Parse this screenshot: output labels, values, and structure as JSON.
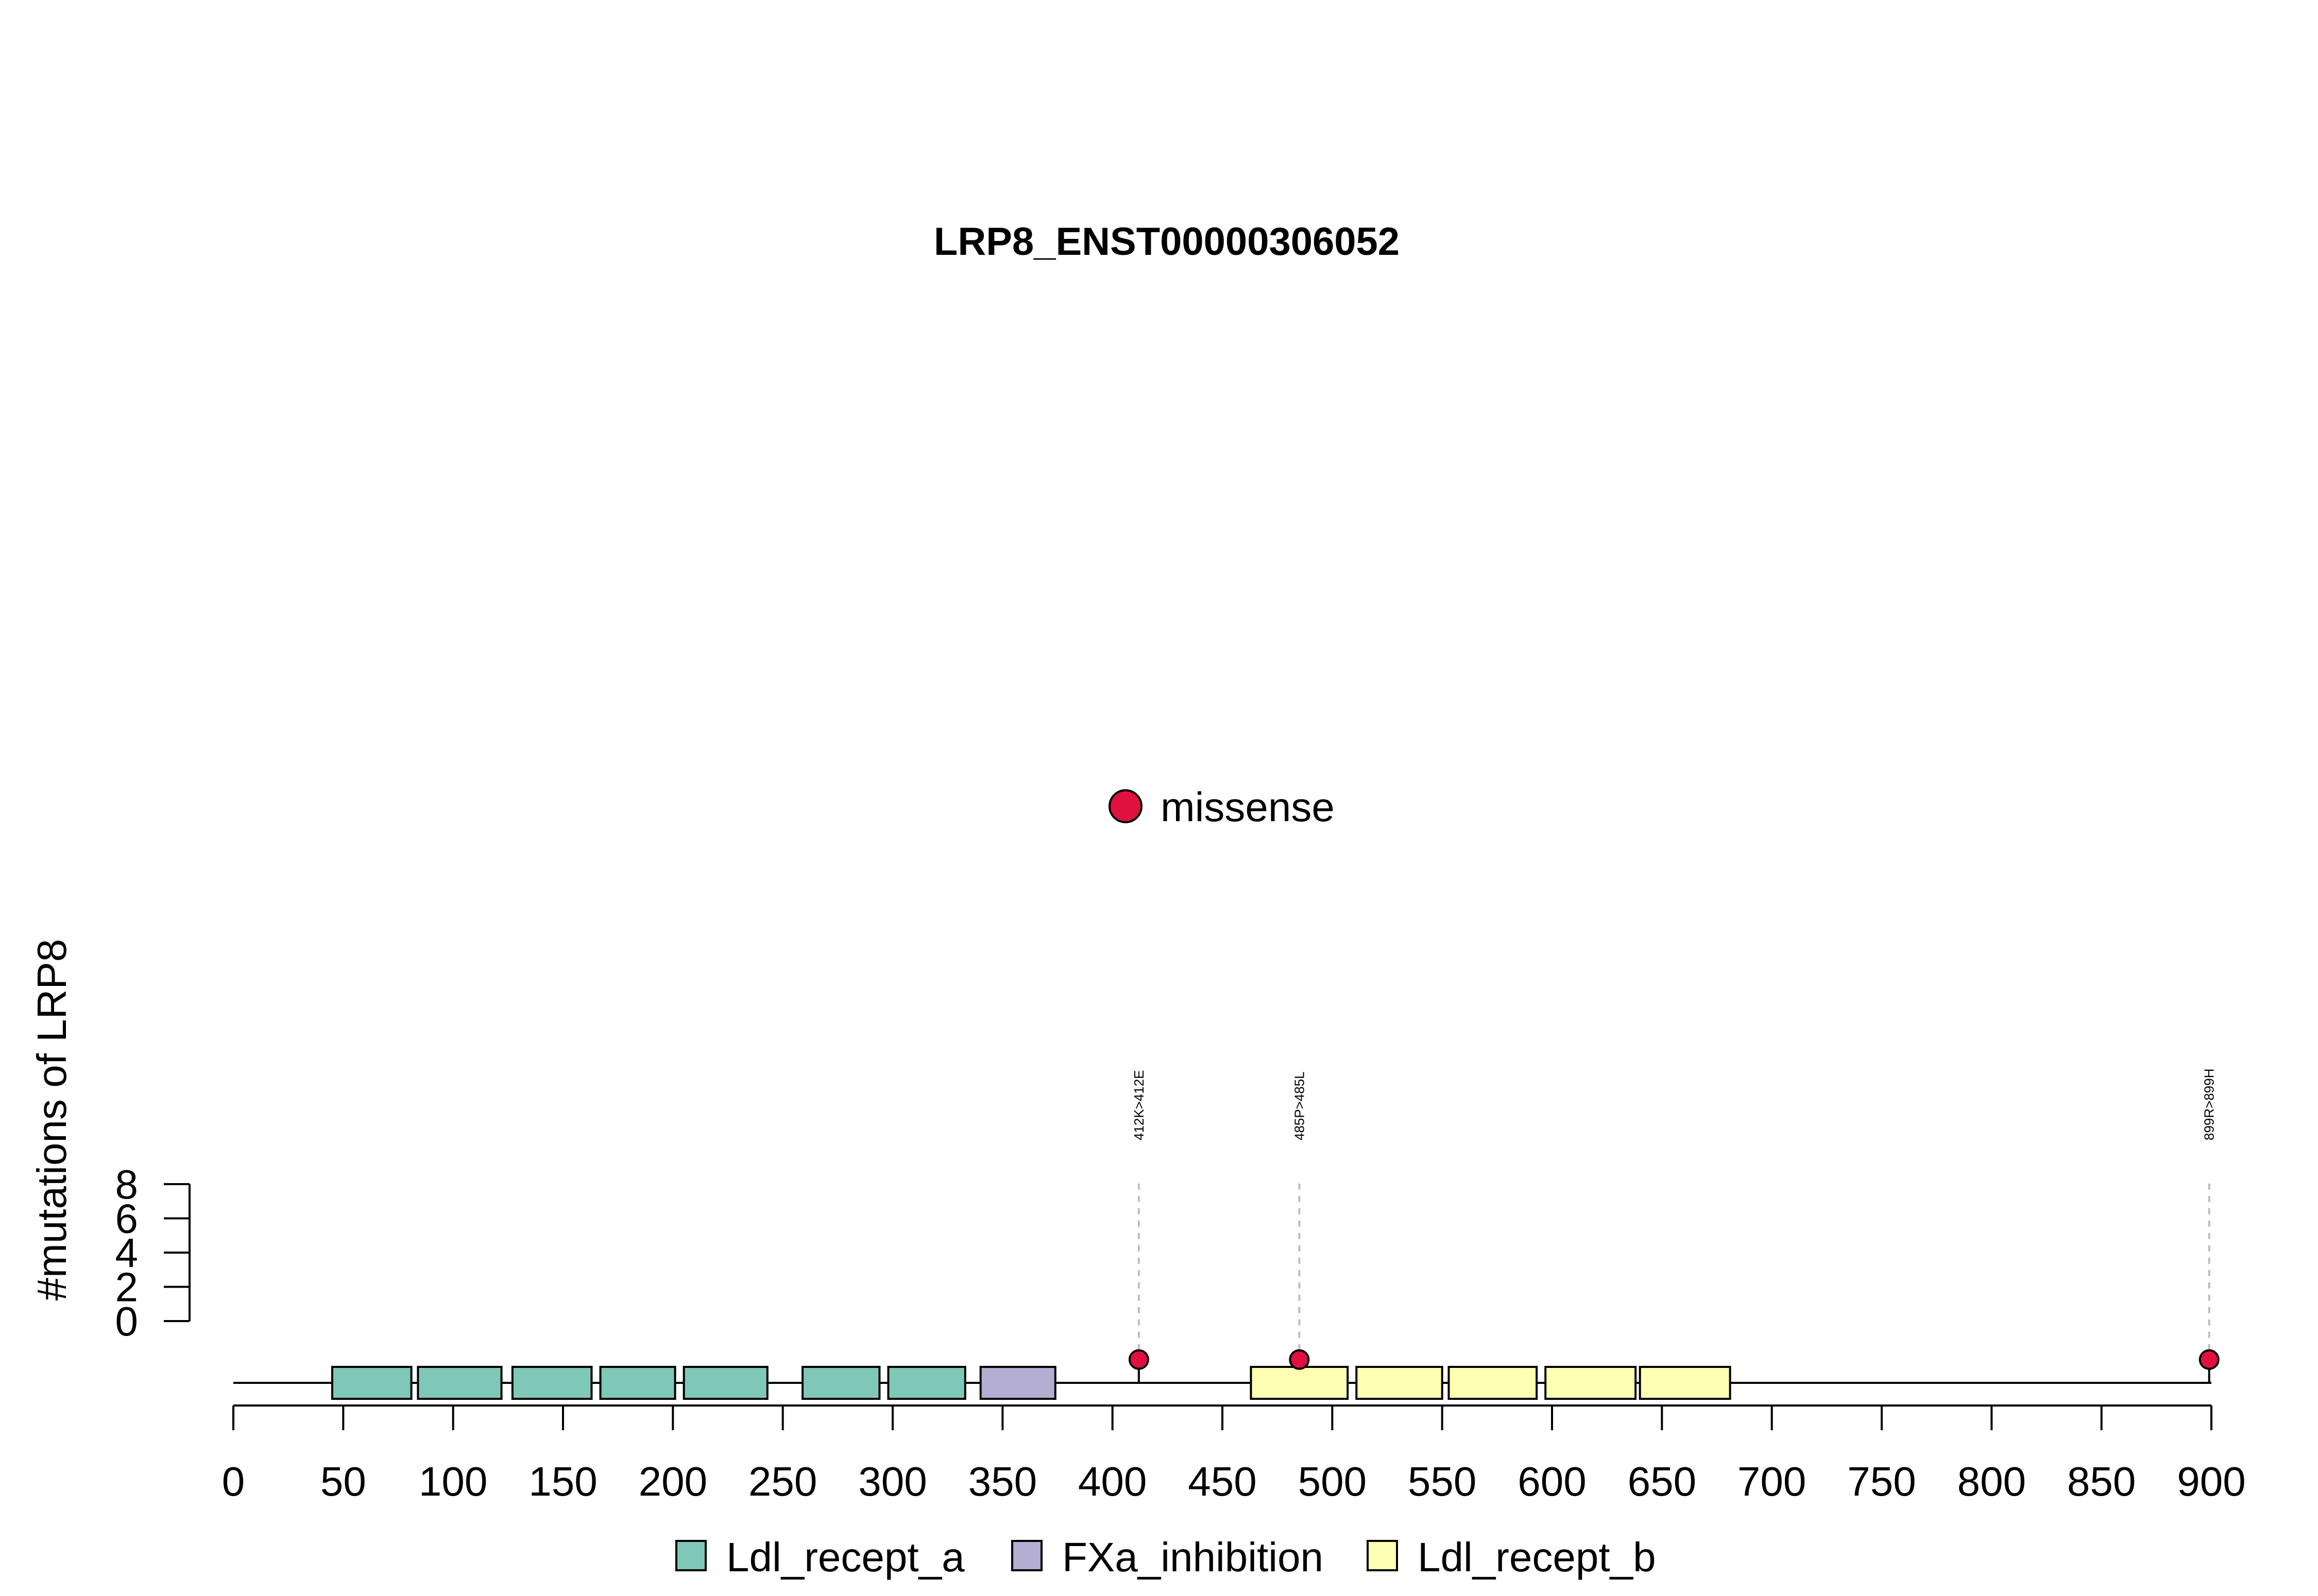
{
  "chart_data": {
    "type": "lollipop",
    "title": "LRP8_ENST00000306052",
    "ylabel": "#mutations of LRP8",
    "ylim": [
      0,
      8
    ],
    "y_ticks": [
      0,
      2,
      4,
      6,
      8
    ],
    "xlim": [
      0,
      900
    ],
    "x_ticks": [
      0,
      50,
      100,
      150,
      200,
      250,
      300,
      350,
      400,
      450,
      500,
      550,
      600,
      650,
      700,
      750,
      800,
      850,
      900
    ],
    "mutation_legend": [
      {
        "label": "missense",
        "color": "#E0103F"
      }
    ],
    "mutations": [
      {
        "position": 412,
        "label": "412K>412E",
        "count": 1,
        "type": "missense"
      },
      {
        "position": 485,
        "label": "485P>485L",
        "count": 1,
        "type": "missense"
      },
      {
        "position": 899,
        "label": "899R>899H",
        "count": 1,
        "type": "missense"
      }
    ],
    "domain_types": [
      {
        "name": "Ldl_recept_a",
        "color": "#7FC8B8"
      },
      {
        "name": "FXa_inhibition",
        "color": "#B3AED2"
      },
      {
        "name": "Ldl_recept_b",
        "color": "#FFFFB3"
      }
    ],
    "domains": [
      {
        "type": "Ldl_recept_a",
        "start": 45,
        "end": 81
      },
      {
        "type": "Ldl_recept_a",
        "start": 84,
        "end": 122
      },
      {
        "type": "Ldl_recept_a",
        "start": 127,
        "end": 163
      },
      {
        "type": "Ldl_recept_a",
        "start": 167,
        "end": 201
      },
      {
        "type": "Ldl_recept_a",
        "start": 205,
        "end": 243
      },
      {
        "type": "Ldl_recept_a",
        "start": 259,
        "end": 294
      },
      {
        "type": "Ldl_recept_a",
        "start": 298,
        "end": 333
      },
      {
        "type": "FXa_inhibition",
        "start": 340,
        "end": 374
      },
      {
        "type": "Ldl_recept_b",
        "start": 463,
        "end": 507
      },
      {
        "type": "Ldl_recept_b",
        "start": 511,
        "end": 550
      },
      {
        "type": "Ldl_recept_b",
        "start": 553,
        "end": 593
      },
      {
        "type": "Ldl_recept_b",
        "start": 597,
        "end": 638
      },
      {
        "type": "Ldl_recept_b",
        "start": 640,
        "end": 681
      }
    ]
  }
}
